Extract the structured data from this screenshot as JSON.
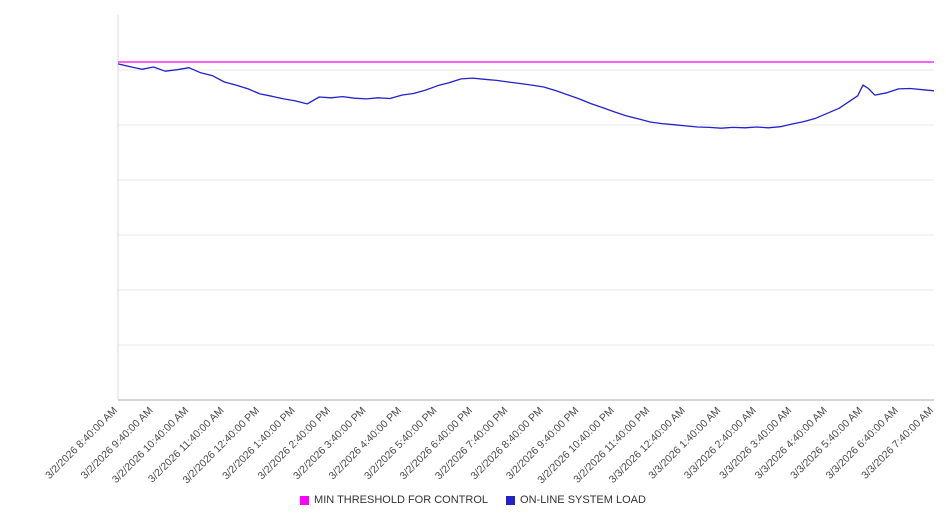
{
  "chart_data": {
    "type": "line",
    "title": "",
    "xlabel": "",
    "ylabel": "",
    "y_axis_labeled": false,
    "y_units": "unlabeled axis (values normalized 0-100 of plot height)",
    "ylim": [
      0,
      100
    ],
    "grid": "horizontal",
    "gridline_divisions": 7,
    "legend_position": "bottom",
    "categories": [
      "3/2/2026 8:40:00 AM",
      "3/2/2026 9:40:00 AM",
      "3/2/2026 10:40:00 AM",
      "3/2/2026 11:40:00 AM",
      "3/2/2026 12:40:00 PM",
      "3/2/2026 1:40:00 PM",
      "3/2/2026 2:40:00 PM",
      "3/2/2026 3:40:00 PM",
      "3/2/2026 4:40:00 PM",
      "3/2/2026 5:40:00 PM",
      "3/2/2026 6:40:00 PM",
      "3/2/2026 7:40:00 PM",
      "3/2/2026 8:40:00 PM",
      "3/2/2026 9:40:00 PM",
      "3/2/2026 10:40:00 PM",
      "3/2/2026 11:40:00 PM",
      "3/3/2026 12:40:00 AM",
      "3/3/2026 1:40:00 AM",
      "3/3/2026 2:40:00 AM",
      "3/3/2026 3:40:00 AM",
      "3/3/2026 4:40:00 AM",
      "3/3/2026 5:40:00 AM",
      "3/3/2026 6:40:00 AM",
      "3/3/2026 7:40:00 AM"
    ],
    "series": [
      {
        "name": "MIN THRESHOLD FOR CONTROL",
        "color": "#ff00ff",
        "style": "constant",
        "value": 87.8
      },
      {
        "name": "ON-LINE SYSTEM LOAD",
        "color": "#2222cc",
        "style": "line",
        "points": [
          [
            0,
            87.3
          ],
          [
            0.33,
            86.6
          ],
          [
            0.67,
            85.9
          ],
          [
            1,
            86.5
          ],
          [
            1.33,
            85.4
          ],
          [
            1.67,
            85.8
          ],
          [
            2,
            86.3
          ],
          [
            2.33,
            85
          ],
          [
            2.67,
            84.2
          ],
          [
            3,
            82.6
          ],
          [
            3.33,
            81.8
          ],
          [
            3.67,
            80.8
          ],
          [
            4,
            79.5
          ],
          [
            4.33,
            78.9
          ],
          [
            4.67,
            78.2
          ],
          [
            5,
            77.7
          ],
          [
            5.33,
            76.9
          ],
          [
            5.67,
            78.7
          ],
          [
            6,
            78.5
          ],
          [
            6.33,
            78.8
          ],
          [
            6.67,
            78.4
          ],
          [
            7,
            78.2
          ],
          [
            7.33,
            78.5
          ],
          [
            7.67,
            78.3
          ],
          [
            8,
            79.2
          ],
          [
            8.33,
            79.6
          ],
          [
            8.67,
            80.5
          ],
          [
            9,
            81.6
          ],
          [
            9.33,
            82.4
          ],
          [
            9.67,
            83.4
          ],
          [
            10,
            83.6
          ],
          [
            10.33,
            83.3
          ],
          [
            10.67,
            83
          ],
          [
            11,
            82.6
          ],
          [
            11.33,
            82.2
          ],
          [
            11.67,
            81.8
          ],
          [
            12,
            81.3
          ],
          [
            12.33,
            80.4
          ],
          [
            12.67,
            79.3
          ],
          [
            13,
            78.2
          ],
          [
            13.33,
            77
          ],
          [
            13.67,
            75.9
          ],
          [
            14,
            74.8
          ],
          [
            14.33,
            73.8
          ],
          [
            14.67,
            73
          ],
          [
            15,
            72.2
          ],
          [
            15.33,
            71.8
          ],
          [
            15.67,
            71.5
          ],
          [
            16,
            71.2
          ],
          [
            16.33,
            70.9
          ],
          [
            16.67,
            70.8
          ],
          [
            17,
            70.6
          ],
          [
            17.33,
            70.8
          ],
          [
            17.67,
            70.7
          ],
          [
            18,
            70.9
          ],
          [
            18.33,
            70.7
          ],
          [
            18.67,
            71
          ],
          [
            19,
            71.7
          ],
          [
            19.33,
            72.3
          ],
          [
            19.67,
            73.2
          ],
          [
            20,
            74.5
          ],
          [
            20.33,
            75.8
          ],
          [
            20.67,
            77.9
          ],
          [
            20.85,
            79
          ],
          [
            21,
            81.8
          ],
          [
            21.15,
            80.9
          ],
          [
            21.33,
            79.2
          ],
          [
            21.67,
            79.8
          ],
          [
            22,
            80.8
          ],
          [
            22.33,
            80.9
          ],
          [
            22.67,
            80.6
          ],
          [
            23,
            80.3
          ]
        ]
      }
    ]
  },
  "colors": {
    "gridline": "#e8e8e8",
    "axis": "#aaaaaa",
    "left_axis": "#d9d9d9",
    "tick_text": "#4a4a4a"
  }
}
